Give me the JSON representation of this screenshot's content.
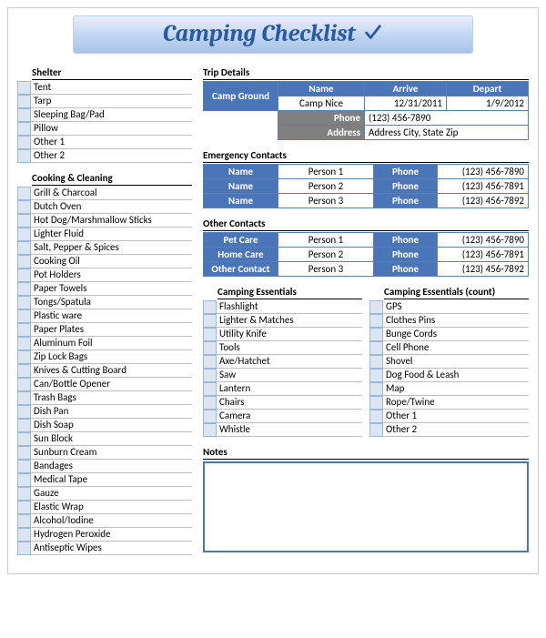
{
  "title": "Camping Checklist",
  "shelter": {
    "header": "Shelter",
    "items": [
      "Tent",
      "Tarp",
      "Sleeping Bag/Pad",
      "Pillow",
      "Other 1",
      "Other 2"
    ]
  },
  "cooking": {
    "header": "Cooking & Cleaning",
    "items": [
      "Grill & Charcoal",
      "Dutch Oven",
      "Hot Dog/Marshmallow Sticks",
      "Lighter Fluid",
      "Salt, Pepper & Spices",
      "Cooking Oil",
      "Pot Holders",
      "Paper Towels",
      "Tongs/Spatula",
      "Plastic ware",
      "Paper Plates",
      "Aluminum Foil",
      "Zip Lock Bags",
      "Knives & Cutting Board",
      "Can/Bottle Opener",
      "Trash Bags",
      "Dish Pan",
      "Dish Soap",
      "Sun Block",
      "Sunburn Cream",
      "Bandages",
      "Medical Tape",
      "Gauze",
      "Elastic Wrap",
      "Alcohol/Iodine",
      "Hydrogen Peroxide",
      "Antiseptic Wipes"
    ]
  },
  "trip": {
    "header": "Trip Details",
    "labels": {
      "campGround": "Camp Ground",
      "name": "Name",
      "arrive": "Arrive",
      "depart": "Depart",
      "phone": "Phone",
      "address": "Address"
    },
    "name": "Camp Nice",
    "arrive": "12/31/2011",
    "depart": "1/9/2012",
    "phone": "(123) 456-7890",
    "address": "Address City, State Zip"
  },
  "emergency": {
    "header": "Emergency Contacts",
    "labels": {
      "name": "Name",
      "phone": "Phone"
    },
    "rows": [
      {
        "name": "Person 1",
        "phone": "(123) 456-7890"
      },
      {
        "name": "Person 2",
        "phone": "(123) 456-7891"
      },
      {
        "name": "Person 3",
        "phone": "(123) 456-7892"
      }
    ]
  },
  "other": {
    "header": "Other Contacts",
    "rows": [
      {
        "label": "Pet Care",
        "name": "Person 1",
        "phoneLabel": "Phone",
        "phone": "(123) 456-7890"
      },
      {
        "label": "Home Care",
        "name": "Person 2",
        "phoneLabel": "Phone",
        "phone": "(123) 456-7891"
      },
      {
        "label": "Other Contact",
        "name": "Person 3",
        "phoneLabel": "Phone",
        "phone": "(123) 456-7892"
      }
    ]
  },
  "essentials1": {
    "header": "Camping Essentials",
    "items": [
      "Flashlight",
      "Lighter & Matches",
      "Utility Knife",
      "Tools",
      "Axe/Hatchet",
      "Saw",
      "Lantern",
      "Chairs",
      "Camera",
      "Whistle"
    ]
  },
  "essentials2": {
    "header": "Camping Essentials (count)",
    "items": [
      "GPS",
      "Clothes Pins",
      "Bunge Cords",
      "Cell Phone",
      "Shovel",
      "Dog Food & Leash",
      "Map",
      "Rope/Twine",
      "Other 1",
      "Other 2"
    ]
  },
  "notes": {
    "header": "Notes"
  },
  "colors": {
    "headerBlue": "#4a76b8",
    "lightBlue": "#dce6f2",
    "borderBlue": "#9db7d8",
    "grey": "#808080"
  }
}
